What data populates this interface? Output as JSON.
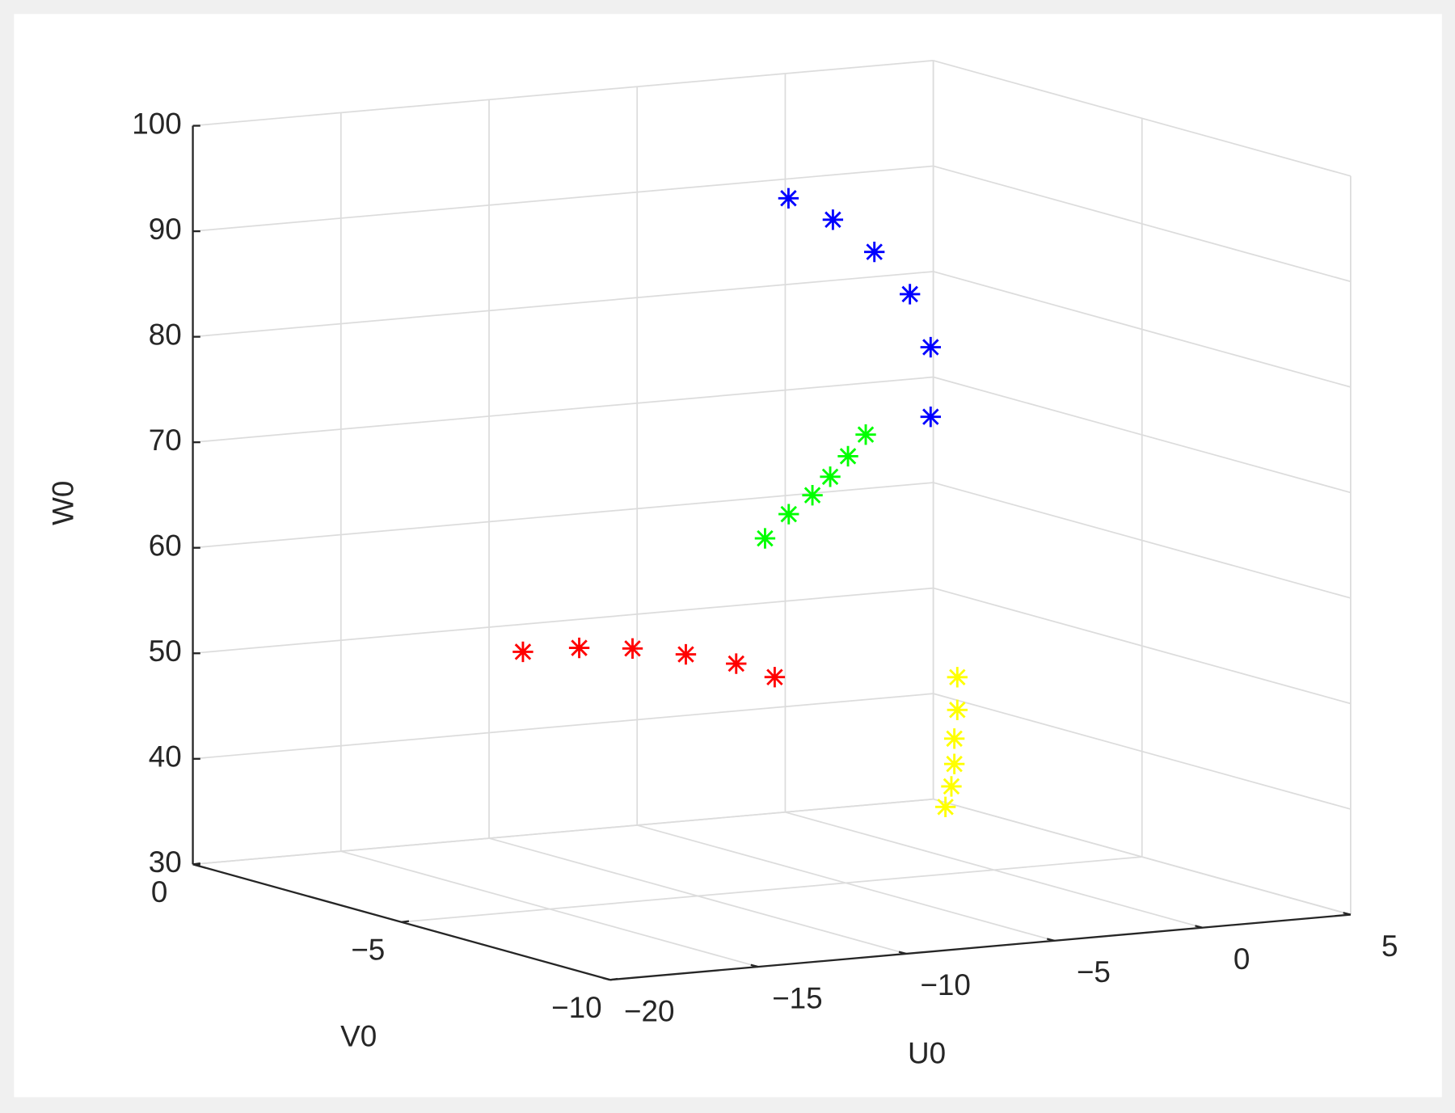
{
  "chart_data": {
    "type": "scatter3d",
    "xlabel": "U0",
    "ylabel": "V0",
    "zlabel": "W0",
    "xlim": [
      -20,
      5
    ],
    "xticks": [
      {
        "value": -20,
        "label": "−20"
      },
      {
        "value": -15,
        "label": "−15"
      },
      {
        "value": -10,
        "label": "−10"
      },
      {
        "value": -5,
        "label": "−5"
      },
      0,
      5
    ],
    "ylim": [
      -10,
      0
    ],
    "yticks": [
      {
        "value": -10,
        "label": "−10"
      },
      {
        "value": -5,
        "label": "−5"
      },
      0
    ],
    "zlim": [
      30,
      100
    ],
    "zticks": [
      30,
      40,
      50,
      60,
      70,
      80,
      90,
      100
    ],
    "grid": true,
    "series": [
      {
        "color": "#ff0000",
        "x": [
          -15.9,
          -14.0,
          -12.2,
          -10.4,
          -8.7,
          -7.4
        ],
        "y": [
          -5,
          -5,
          -5,
          -5,
          -5,
          -5
        ],
        "z": [
          54.6,
          54.5,
          54.0,
          53.0,
          51.7,
          50.1
        ]
      },
      {
        "color": "#00ff00",
        "x": [
          -3.5,
          -2.7,
          -1.9,
          -1.3,
          -0.7,
          -0.1
        ],
        "y": [
          -2,
          -2,
          -2,
          -2,
          -2,
          -2
        ],
        "z": [
          59.0,
          61.1,
          62.7,
          64.3,
          66.1,
          68.0
        ]
      },
      {
        "color": "#0000ff",
        "x": [
          -1.3,
          0.2,
          1.6,
          2.8,
          3.5,
          3.5
        ],
        "y": [
          -1,
          -1,
          -1,
          -1,
          -1,
          -1
        ],
        "z": [
          89.6,
          87.2,
          83.8,
          79.5,
          74.3,
          67.7
        ]
      },
      {
        "color": "#ffff00",
        "x": [
          4.4,
          4.4,
          4.3,
          4.3,
          4.2,
          4.0
        ],
        "y": [
          -1,
          -1,
          -1,
          -1,
          -1,
          -1
        ],
        "z": [
          42.8,
          39.7,
          37.0,
          34.6,
          32.5,
          30.6
        ]
      }
    ]
  }
}
